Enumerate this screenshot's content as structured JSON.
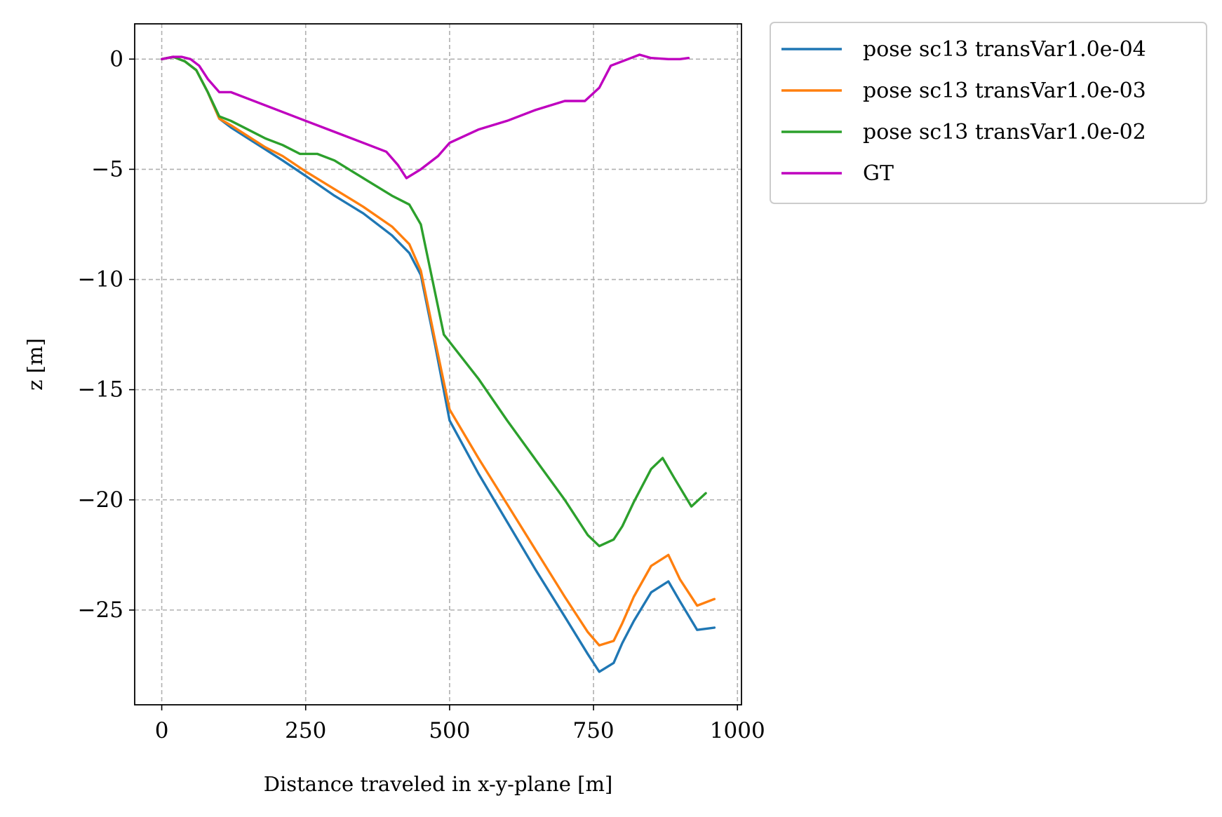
{
  "chart_data": {
    "type": "line",
    "title": "",
    "xlabel": "Distance traveled in x-y-plane [m]",
    "ylabel": "z [m]",
    "xlim": [
      -47,
      1007
    ],
    "ylim": [
      -29.3,
      1.6
    ],
    "xticks": [
      0,
      250,
      500,
      750,
      1000
    ],
    "yticks": [
      0,
      -5,
      -10,
      -15,
      -20,
      -25
    ],
    "xtick_labels": [
      "0",
      "250",
      "500",
      "750",
      "1000"
    ],
    "ytick_labels": [
      "0",
      "−5",
      "−10",
      "−15",
      "−20",
      "−25"
    ],
    "grid": true,
    "legend_position": "outside upper right",
    "series": [
      {
        "name": "pose sc13 transVar1.0e-04",
        "color": "#1f77b4",
        "points": [
          [
            0,
            0
          ],
          [
            20,
            0.1
          ],
          [
            40,
            -0.1
          ],
          [
            60,
            -0.5
          ],
          [
            80,
            -1.5
          ],
          [
            100,
            -2.7
          ],
          [
            120,
            -3.1
          ],
          [
            150,
            -3.6
          ],
          [
            180,
            -4.1
          ],
          [
            210,
            -4.6
          ],
          [
            250,
            -5.3
          ],
          [
            300,
            -6.2
          ],
          [
            350,
            -7.0
          ],
          [
            400,
            -8.0
          ],
          [
            430,
            -8.8
          ],
          [
            450,
            -9.8
          ],
          [
            475,
            -13.0
          ],
          [
            500,
            -16.4
          ],
          [
            550,
            -18.8
          ],
          [
            600,
            -21.0
          ],
          [
            650,
            -23.2
          ],
          [
            700,
            -25.3
          ],
          [
            740,
            -27.0
          ],
          [
            760,
            -27.8
          ],
          [
            785,
            -27.4
          ],
          [
            800,
            -26.5
          ],
          [
            820,
            -25.5
          ],
          [
            850,
            -24.2
          ],
          [
            880,
            -23.7
          ],
          [
            900,
            -24.6
          ],
          [
            930,
            -25.9
          ],
          [
            960,
            -25.8
          ]
        ]
      },
      {
        "name": "pose sc13 transVar1.0e-03",
        "color": "#ff7f0e",
        "points": [
          [
            0,
            0
          ],
          [
            20,
            0.1
          ],
          [
            40,
            -0.1
          ],
          [
            60,
            -0.5
          ],
          [
            80,
            -1.5
          ],
          [
            100,
            -2.7
          ],
          [
            120,
            -3.0
          ],
          [
            150,
            -3.5
          ],
          [
            180,
            -4.0
          ],
          [
            210,
            -4.4
          ],
          [
            250,
            -5.1
          ],
          [
            300,
            -5.9
          ],
          [
            350,
            -6.7
          ],
          [
            400,
            -7.6
          ],
          [
            430,
            -8.4
          ],
          [
            450,
            -9.6
          ],
          [
            475,
            -12.8
          ],
          [
            500,
            -15.9
          ],
          [
            550,
            -18.1
          ],
          [
            600,
            -20.2
          ],
          [
            650,
            -22.3
          ],
          [
            700,
            -24.4
          ],
          [
            740,
            -26.0
          ],
          [
            760,
            -26.6
          ],
          [
            785,
            -26.4
          ],
          [
            800,
            -25.6
          ],
          [
            820,
            -24.4
          ],
          [
            850,
            -23.0
          ],
          [
            880,
            -22.5
          ],
          [
            900,
            -23.6
          ],
          [
            930,
            -24.8
          ],
          [
            960,
            -24.5
          ]
        ]
      },
      {
        "name": "pose sc13 transVar1.0e-02",
        "color": "#2ca02c",
        "points": [
          [
            0,
            0
          ],
          [
            20,
            0.1
          ],
          [
            40,
            -0.1
          ],
          [
            60,
            -0.5
          ],
          [
            80,
            -1.5
          ],
          [
            100,
            -2.6
          ],
          [
            120,
            -2.8
          ],
          [
            150,
            -3.2
          ],
          [
            180,
            -3.6
          ],
          [
            210,
            -3.9
          ],
          [
            240,
            -4.3
          ],
          [
            270,
            -4.3
          ],
          [
            300,
            -4.6
          ],
          [
            350,
            -5.4
          ],
          [
            400,
            -6.2
          ],
          [
            430,
            -6.6
          ],
          [
            450,
            -7.5
          ],
          [
            470,
            -10.0
          ],
          [
            490,
            -12.5
          ],
          [
            550,
            -14.5
          ],
          [
            600,
            -16.4
          ],
          [
            650,
            -18.2
          ],
          [
            700,
            -20.0
          ],
          [
            740,
            -21.6
          ],
          [
            760,
            -22.1
          ],
          [
            785,
            -21.8
          ],
          [
            800,
            -21.2
          ],
          [
            820,
            -20.1
          ],
          [
            850,
            -18.6
          ],
          [
            870,
            -18.1
          ],
          [
            890,
            -19.0
          ],
          [
            920,
            -20.3
          ],
          [
            945,
            -19.7
          ]
        ]
      },
      {
        "name": "GT",
        "color": "#bf00bf",
        "points": [
          [
            0,
            0
          ],
          [
            20,
            0.1
          ],
          [
            35,
            0.1
          ],
          [
            50,
            0
          ],
          [
            65,
            -0.3
          ],
          [
            80,
            -0.9
          ],
          [
            100,
            -1.5
          ],
          [
            120,
            -1.5
          ],
          [
            150,
            -1.8
          ],
          [
            200,
            -2.3
          ],
          [
            250,
            -2.8
          ],
          [
            300,
            -3.3
          ],
          [
            350,
            -3.8
          ],
          [
            390,
            -4.2
          ],
          [
            410,
            -4.8
          ],
          [
            425,
            -5.4
          ],
          [
            450,
            -5.0
          ],
          [
            480,
            -4.4
          ],
          [
            500,
            -3.8
          ],
          [
            550,
            -3.2
          ],
          [
            600,
            -2.8
          ],
          [
            650,
            -2.3
          ],
          [
            700,
            -1.9
          ],
          [
            735,
            -1.9
          ],
          [
            760,
            -1.3
          ],
          [
            780,
            -0.3
          ],
          [
            810,
            0
          ],
          [
            830,
            0.2
          ],
          [
            850,
            0.05
          ],
          [
            880,
            0
          ],
          [
            900,
            0
          ],
          [
            915,
            0.05
          ]
        ]
      }
    ]
  }
}
